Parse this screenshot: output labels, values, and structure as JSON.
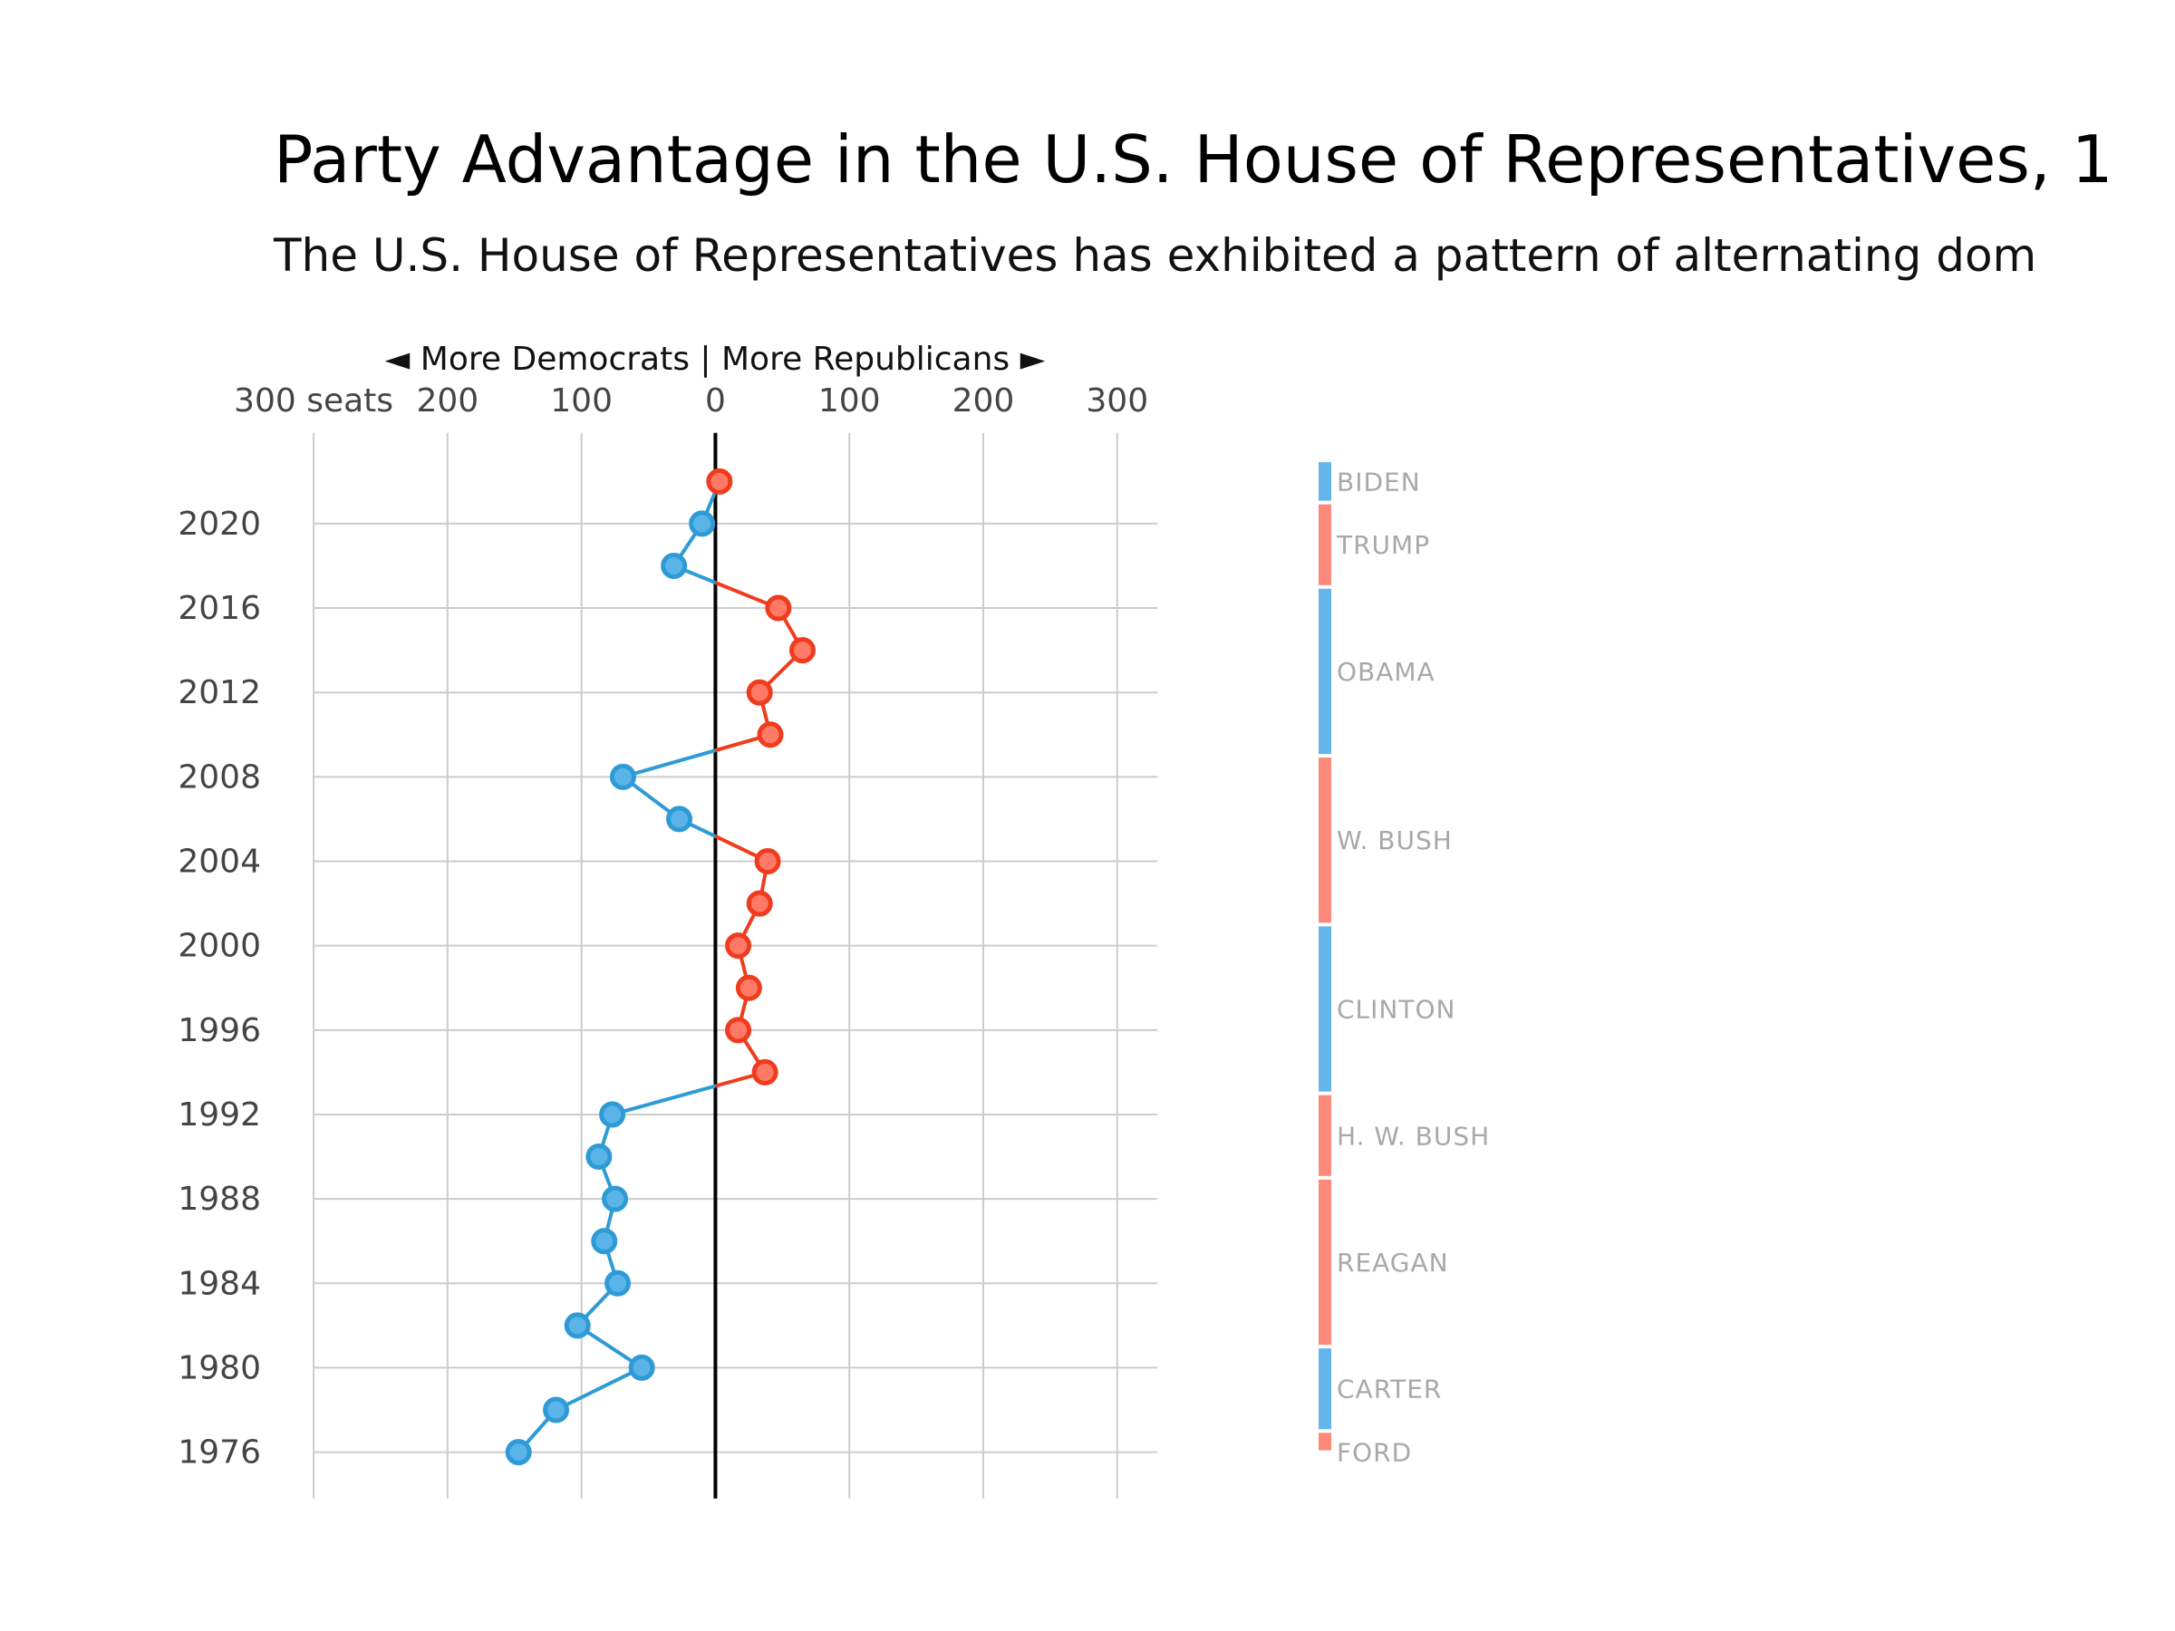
{
  "chart_data": {
    "type": "line",
    "title": "Party Advantage in the U.S. House of Representatives, 1",
    "subtitle": "The U.S. House of Representatives has exhibited a pattern of alternating dom",
    "top_axis_label": "◄ More Democrats | More Republicans ►",
    "x_tick_labels": [
      "300 seats",
      "200",
      "100",
      "0",
      "100",
      "200",
      "300"
    ],
    "x_ticks": [
      -300,
      -200,
      -100,
      0,
      100,
      200,
      300
    ],
    "xlim": [
      -300,
      330
    ],
    "y_ticks": [
      1976,
      1980,
      1984,
      1988,
      1992,
      1996,
      2000,
      2004,
      2008,
      2012,
      2016,
      2020
    ],
    "ylim": [
      1973.8,
      2024.3
    ],
    "grid": true,
    "colors": {
      "democrat_line": "#2e9bd6",
      "democrat_fill": "#5ab4e8",
      "republican_line": "#f03c1e",
      "republican_fill": "#ff7a66",
      "zero_line": "#000000",
      "democrat_bar": "#64b5ec",
      "republican_bar": "#fb8a7a"
    },
    "series": [
      {
        "name": "Democrats",
        "points": [
          {
            "year": 1976,
            "advantage": -147
          },
          {
            "year": 1978,
            "advantage": -119
          },
          {
            "year": 1980,
            "advantage": -55
          },
          {
            "year": 1982,
            "advantage": -103
          },
          {
            "year": 1984,
            "advantage": -73
          },
          {
            "year": 1986,
            "advantage": -83
          },
          {
            "year": 1988,
            "advantage": -75
          },
          {
            "year": 1990,
            "advantage": -87
          },
          {
            "year": 1992,
            "advantage": -77
          },
          {
            "year": 2006,
            "advantage": -27
          },
          {
            "year": 2008,
            "advantage": -69
          },
          {
            "year": 2018,
            "advantage": -31
          },
          {
            "year": 2020,
            "advantage": -10
          }
        ]
      },
      {
        "name": "Republicans",
        "points": [
          {
            "year": 1994,
            "advantage": 37
          },
          {
            "year": 1996,
            "advantage": 17
          },
          {
            "year": 1998,
            "advantage": 25
          },
          {
            "year": 2000,
            "advantage": 17
          },
          {
            "year": 2002,
            "advantage": 33
          },
          {
            "year": 2004,
            "advantage": 39
          },
          {
            "year": 2010,
            "advantage": 41
          },
          {
            "year": 2012,
            "advantage": 33
          },
          {
            "year": 2014,
            "advantage": 65
          },
          {
            "year": 2016,
            "advantage": 47
          },
          {
            "year": 2022,
            "advantage": 3
          }
        ]
      }
    ],
    "presidents": [
      {
        "name": "FORD",
        "party": "R",
        "start": 1976,
        "end": 1977
      },
      {
        "name": "CARTER",
        "party": "D",
        "start": 1977,
        "end": 1981
      },
      {
        "name": "REAGAN",
        "party": "R",
        "start": 1981,
        "end": 1989
      },
      {
        "name": "H. W. BUSH",
        "party": "R",
        "start": 1989,
        "end": 1993
      },
      {
        "name": "CLINTON",
        "party": "D",
        "start": 1993,
        "end": 2001
      },
      {
        "name": "W. BUSH",
        "party": "R",
        "start": 2001,
        "end": 2009
      },
      {
        "name": "OBAMA",
        "party": "D",
        "start": 2009,
        "end": 2017
      },
      {
        "name": "TRUMP",
        "party": "R",
        "start": 2017,
        "end": 2021
      },
      {
        "name": "BIDEN",
        "party": "D",
        "start": 2021,
        "end": 2023
      }
    ]
  }
}
